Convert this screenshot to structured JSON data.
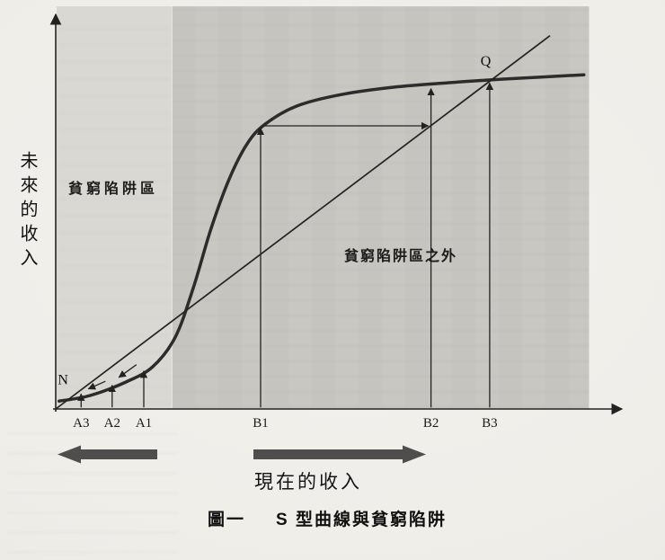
{
  "figure": {
    "caption_label": "圖一",
    "caption_title": "S 型曲線與貧窮陷阱",
    "y_axis_label": "未來的收入",
    "x_axis_flow_label": "現在的收入",
    "region_left_label": "貧窮陷阱區",
    "region_right_label": "貧窮陷阱區之外"
  },
  "colors": {
    "curve": "#2b2b2b",
    "diagonal": "#222222",
    "axis": "#222222",
    "arrow": "#222222",
    "flow_arrow": "#4f4e4c",
    "region_left_fill": "#d9d8d3",
    "region_right_fill": "#c8c7c2",
    "paper": "#efede8"
  },
  "chart_data": {
    "type": "line",
    "title": "圖一 S 型曲線與貧窮陷阱",
    "xlabel": "現在的收入",
    "ylabel": "未來的收入",
    "axes_numeric": false,
    "coordinate_note": "conceptual diagram; x/y normalized 0-1 from axis origin",
    "series": [
      {
        "name": "S 型曲線",
        "color": "#2b2b2b",
        "width": 3.5,
        "smooth": true,
        "points": [
          [
            0.006,
            0.02
          ],
          [
            0.061,
            0.034
          ],
          [
            0.124,
            0.068
          ],
          [
            0.172,
            0.107
          ],
          [
            0.212,
            0.182
          ],
          [
            0.244,
            0.307
          ],
          [
            0.275,
            0.455
          ],
          [
            0.307,
            0.58
          ],
          [
            0.339,
            0.67
          ],
          [
            0.371,
            0.72
          ],
          [
            0.427,
            0.766
          ],
          [
            0.506,
            0.795
          ],
          [
            0.602,
            0.814
          ],
          [
            0.697,
            0.825
          ],
          [
            0.793,
            0.834
          ],
          [
            0.936,
            0.845
          ]
        ]
      },
      {
        "name": "45度線",
        "color": "#222222",
        "width": 1.7,
        "smooth": false,
        "points": [
          [
            0.0,
            0.0
          ],
          [
            0.875,
            0.943
          ]
        ]
      }
    ],
    "x_ticks": [
      {
        "label": "A3",
        "x": 0.045
      },
      {
        "label": "A2",
        "x": 0.1
      },
      {
        "label": "A1",
        "x": 0.156
      },
      {
        "label": "B1",
        "x": 0.363
      },
      {
        "label": "B2",
        "x": 0.665
      },
      {
        "label": "B3",
        "x": 0.769
      }
    ],
    "points": [
      {
        "label": "N",
        "x": 0.013,
        "y": 0.062
      },
      {
        "label": "Q",
        "x": 0.762,
        "y": 0.868
      }
    ],
    "regions": [
      {
        "label": "貧窮陷阱區",
        "x": [
          0.0,
          0.205
        ],
        "fill": "#d9d8d3"
      },
      {
        "label": "貧窮陷阱區之外",
        "x": [
          0.205,
          0.945
        ],
        "fill": "#c8c7c2"
      }
    ],
    "arrows": [
      {
        "name": "a1-up",
        "from": [
          0.156,
          0.004
        ],
        "to": [
          0.156,
          0.096
        ]
      },
      {
        "name": "a2-up",
        "from": [
          0.1,
          0.004
        ],
        "to": [
          0.1,
          0.06
        ]
      },
      {
        "name": "a3-up",
        "from": [
          0.045,
          0.004
        ],
        "to": [
          0.045,
          0.038
        ]
      },
      {
        "name": "converge-to-n-1",
        "from": [
          0.143,
          0.112
        ],
        "to": [
          0.112,
          0.08
        ]
      },
      {
        "name": "converge-to-n-2",
        "from": [
          0.088,
          0.07
        ],
        "to": [
          0.058,
          0.051
        ]
      },
      {
        "name": "b1-up-to-curve",
        "from": [
          0.363,
          0.004
        ],
        "to": [
          0.363,
          0.71
        ]
      },
      {
        "name": "b1-across-to-diagonal",
        "from": [
          0.371,
          0.716
        ],
        "to": [
          0.66,
          0.716
        ]
      },
      {
        "name": "b2-up-to-curve",
        "from": [
          0.665,
          0.004
        ],
        "to": [
          0.665,
          0.81
        ]
      },
      {
        "name": "b3-up-to-q",
        "from": [
          0.769,
          0.004
        ],
        "to": [
          0.769,
          0.824
        ]
      }
    ]
  }
}
